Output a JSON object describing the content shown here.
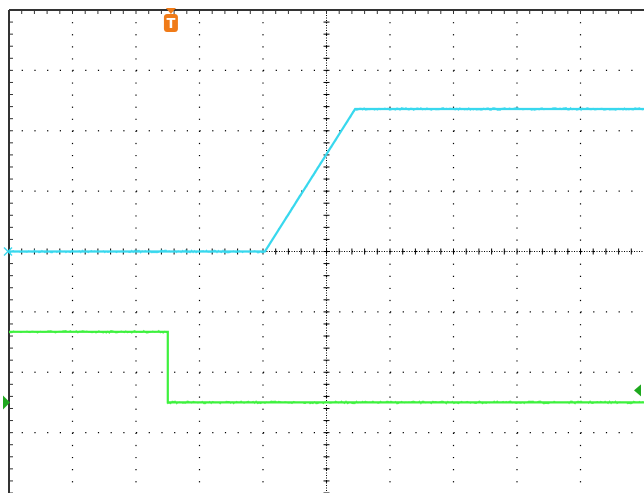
{
  "chart_data": {
    "type": "line",
    "title": "",
    "xlabel": "",
    "ylabel": "",
    "grid": true,
    "grid_style": "dotted",
    "x_divisions": 10,
    "y_divisions": 8,
    "xlim": [
      0,
      10
    ],
    "ylim": [
      0,
      8
    ],
    "colors": {
      "background": "#ffffff",
      "grid": "#000000",
      "trigger_marker": "#f07b18",
      "ch1": "#38d8ee",
      "ch2": "#3ef13e",
      "ch2_marker": "#1ea81e"
    },
    "series": [
      {
        "color": "#38d8ee",
        "x": [
          0,
          4.03,
          5.45,
          10
        ],
        "y": [
          4.0,
          4.0,
          6.36,
          6.36
        ]
      },
      {
        "color": "#3ef13e",
        "x": [
          0,
          2.5,
          2.5,
          10
        ],
        "y": [
          2.67,
          2.67,
          1.5,
          1.5
        ]
      }
    ],
    "markers": {
      "trigger": {
        "label": "T",
        "icon": "trigger-position-marker",
        "x": 2.55
      },
      "ch1_ground": {
        "icon": "ch1-ground-marker",
        "y": 4.0
      },
      "ch2_ground": {
        "icon": "ch2-ground-marker",
        "y": 1.5
      },
      "ch2_level": {
        "icon": "ch2-level-marker",
        "y": 1.7
      }
    }
  }
}
